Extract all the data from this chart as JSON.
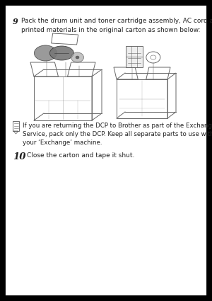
{
  "bg_color": "#000000",
  "page_bg": "#ffffff",
  "border_color": "#000000",
  "step9_num": "9",
  "step9_text": "Pack the drum unit and toner cartridge assembly, AC cord and\nprinted materials in the original carton as shown below:",
  "note_text": "If you are returning the DCP to Brother as part of the Exchange\nService, pack only the DCP. Keep all separate parts to use with\nyour ‘Exchange’ machine.",
  "step10_num": "10",
  "step10_text": "Close the carton and tape it shut.",
  "text_color": "#222222",
  "font_size_step": 6.5,
  "font_size_note": 6.2,
  "font_size_stepnum_9": 8.0,
  "font_size_stepnum_10": 9.5
}
